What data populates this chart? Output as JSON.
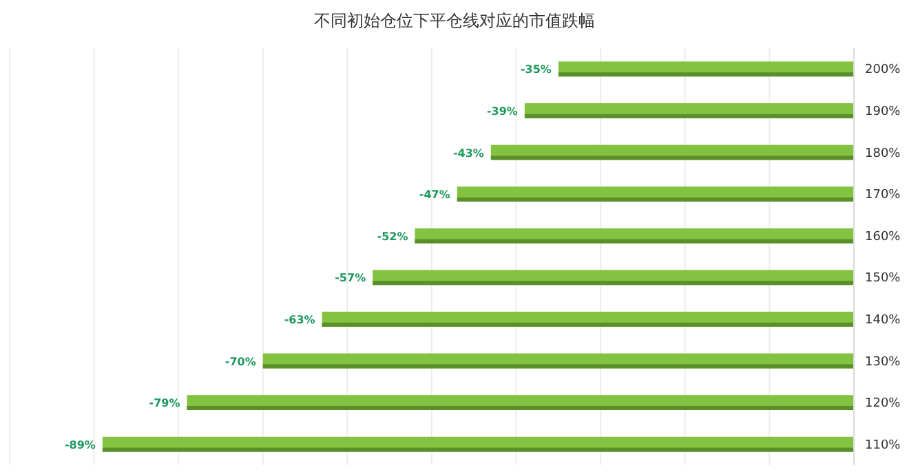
{
  "chart_data": {
    "type": "bar",
    "orientation": "horizontal",
    "title": "不同初始仓位下平仓线对应的市值跌幅",
    "categories": [
      "200%",
      "190%",
      "180%",
      "170%",
      "160%",
      "150%",
      "140%",
      "130%",
      "120%",
      "110%"
    ],
    "values": [
      -35,
      -39,
      -43,
      -47,
      -52,
      -57,
      -63,
      -70,
      -79,
      -89
    ],
    "value_labels": [
      "-35%",
      "-39%",
      "-43%",
      "-47%",
      "-52%",
      "-57%",
      "-63%",
      "-70%",
      "-79%",
      "-89%"
    ],
    "color": "#84c341",
    "xlim": [
      -100,
      0
    ],
    "xticks": [
      {
        "value": -100,
        "label": null
      },
      {
        "value": -90,
        "label": null
      },
      {
        "value": -80,
        "label": null
      },
      {
        "value": -70,
        "label": null
      },
      {
        "value": -60,
        "label": null
      },
      {
        "value": -50,
        "label": null
      },
      {
        "value": -40,
        "label": null
      },
      {
        "value": -30,
        "label": null
      },
      {
        "value": -20,
        "label": null
      },
      {
        "value": -10,
        "label": null
      },
      {
        "value": 0,
        "label": null
      }
    ],
    "grid": "x",
    "tick_labels": "y"
  }
}
